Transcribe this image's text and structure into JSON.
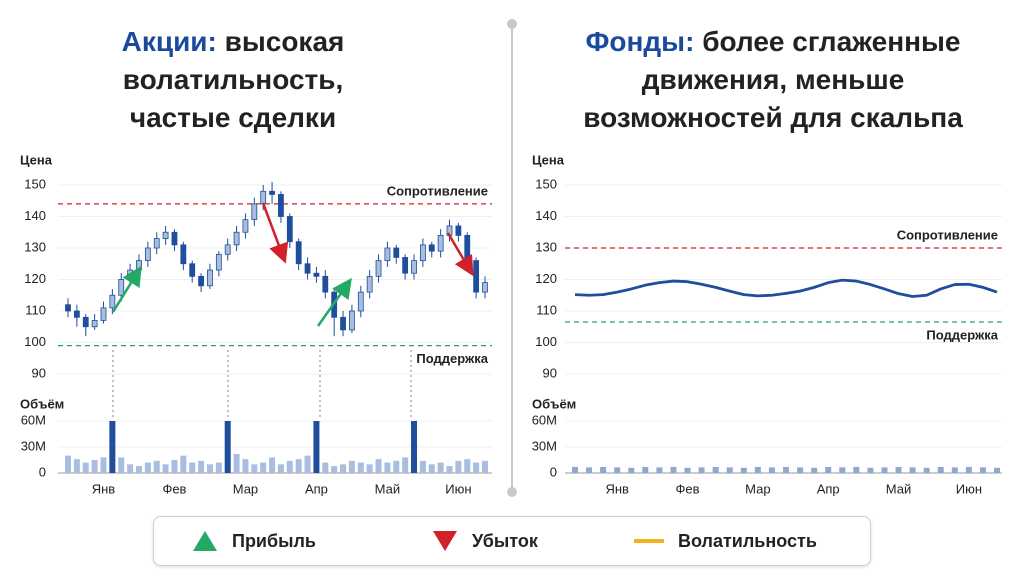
{
  "chart_data": [
    {
      "type": "candlestick",
      "title_highlight": "Акции:",
      "title": "высокая волатильность, частые сделки",
      "title_color": "#1a4a9c",
      "y_label": "Цена",
      "ylim": [
        90,
        150
      ],
      "yticks": [
        90,
        100,
        110,
        120,
        130,
        140,
        150
      ],
      "grid": true,
      "categories": [
        null,
        null,
        null,
        null,
        "Янв",
        null,
        null,
        null,
        null,
        null,
        null,
        null,
        "Фев",
        null,
        null,
        null,
        null,
        null,
        null,
        null,
        "Мар",
        null,
        null,
        null,
        null,
        null,
        null,
        null,
        "Апр",
        null,
        null,
        null,
        null,
        null,
        null,
        null,
        "Май",
        null,
        null,
        null,
        null,
        null,
        null,
        null,
        "Июн",
        null,
        null,
        null
      ],
      "open": [
        112,
        110,
        108,
        105,
        107,
        111,
        115,
        120,
        123,
        126,
        130,
        133,
        135,
        131,
        125,
        121,
        118,
        123,
        128,
        131,
        135,
        139,
        144,
        148,
        147,
        140,
        132,
        125,
        122,
        121,
        116,
        108,
        104,
        110,
        116,
        121,
        126,
        130,
        127,
        122,
        126,
        131,
        129,
        134,
        137,
        134,
        126,
        116
      ],
      "high": [
        114,
        112,
        109,
        109,
        113,
        117,
        122,
        125,
        128,
        132,
        135,
        137,
        136,
        132,
        126,
        122,
        125,
        129,
        133,
        137,
        141,
        146,
        150,
        151,
        148,
        141,
        133,
        127,
        124,
        123,
        117,
        110,
        112,
        118,
        123,
        128,
        132,
        131,
        128,
        128,
        133,
        132,
        136,
        139,
        138,
        135,
        127,
        121
      ],
      "low": [
        108,
        105,
        102,
        104,
        106,
        109,
        113,
        118,
        121,
        124,
        128,
        131,
        129,
        123,
        119,
        116,
        117,
        121,
        126,
        129,
        133,
        137,
        142,
        144,
        138,
        130,
        123,
        120,
        119,
        114,
        102,
        102,
        103,
        108,
        114,
        119,
        124,
        125,
        120,
        120,
        124,
        127,
        127,
        132,
        132,
        124,
        114,
        114
      ],
      "close": [
        110,
        108,
        105,
        107,
        111,
        115,
        120,
        123,
        126,
        130,
        133,
        135,
        131,
        125,
        121,
        118,
        123,
        128,
        131,
        135,
        139,
        144,
        148,
        147,
        140,
        132,
        125,
        122,
        121,
        116,
        108,
        104,
        110,
        116,
        121,
        126,
        130,
        127,
        122,
        126,
        131,
        129,
        134,
        137,
        134,
        126,
        116,
        119
      ],
      "up_color": "#a9bde0",
      "down_color": "#1f4e9c",
      "resistance": {
        "label": "Сопротивление",
        "value": 144,
        "color": "#d0202a"
      },
      "support": {
        "label": "Поддержка",
        "value": 99,
        "color": "#2aa36b"
      },
      "volume": {
        "label": "Объём",
        "ylim": [
          0,
          60
        ],
        "yticks": [
          0,
          {
            "value": 30,
            "label": "30M"
          },
          {
            "value": 60,
            "label": "60M"
          }
        ],
        "values": [
          20,
          16,
          12,
          15,
          18,
          60,
          18,
          10,
          8,
          12,
          14,
          10,
          15,
          20,
          12,
          14,
          10,
          12,
          60,
          22,
          16,
          10,
          12,
          18,
          10,
          14,
          16,
          20,
          60,
          12,
          8,
          10,
          14,
          12,
          10,
          16,
          12,
          14,
          18,
          60,
          14,
          10,
          12,
          8,
          14,
          16,
          12,
          14
        ],
        "colors": [
          "#a9bde0",
          "#a9bde0",
          "#a9bde0",
          "#a9bde0",
          "#a9bde0",
          "#1f4e9c",
          "#a9bde0",
          "#a9bde0",
          "#a9bde0",
          "#a9bde0",
          "#a9bde0",
          "#a9bde0",
          "#a9bde0",
          "#a9bde0",
          "#a9bde0",
          "#a9bde0",
          "#a9bde0",
          "#a9bde0",
          "#1f4e9c",
          "#a9bde0",
          "#a9bde0",
          "#a9bde0",
          "#a9bde0",
          "#a9bde0",
          "#a9bde0",
          "#a9bde0",
          "#a9bde0",
          "#a9bde0",
          "#1f4e9c",
          "#a9bde0",
          "#a9bde0",
          "#a9bde0",
          "#a9bde0",
          "#a9bde0",
          "#a9bde0",
          "#a9bde0",
          "#a9bde0",
          "#a9bde0",
          "#a9bde0",
          "#1f4e9c",
          "#a9bde0",
          "#a9bde0",
          "#a9bde0",
          "#a9bde0",
          "#a9bde0",
          "#a9bde0",
          "#a9bde0",
          "#a9bde0"
        ]
      }
    },
    {
      "type": "line",
      "title_highlight": "Фонды:",
      "title": "более сглаженные движения, меньше возможностей для скальпа",
      "title_color": "#1a4a9c",
      "y_label": "Цена",
      "ylim": [
        90,
        150
      ],
      "yticks": [
        90,
        100,
        110,
        120,
        130,
        140,
        150
      ],
      "grid": true,
      "categories": [
        null,
        null,
        null,
        "Янв",
        null,
        null,
        null,
        null,
        "Фев",
        null,
        null,
        null,
        null,
        "Мар",
        null,
        null,
        null,
        null,
        "Апр",
        null,
        null,
        null,
        null,
        "Май",
        null,
        null,
        null,
        null,
        "Июн",
        null,
        null
      ],
      "values": [
        115.2,
        115,
        115.2,
        116,
        117,
        118.2,
        119,
        119.5,
        119.3,
        118.5,
        117.5,
        116.3,
        115.2,
        114.8,
        115,
        115.6,
        116.3,
        117.5,
        119,
        119.8,
        119.5,
        118.4,
        117,
        115.5,
        114.6,
        115,
        117,
        118.4,
        118.5,
        117.5,
        116
      ],
      "color": "#1f4e9c",
      "resistance": {
        "label": "Сопротивление",
        "value": 130,
        "color": "#d0202a"
      },
      "support": {
        "label": "Поддержка",
        "value": 106.5,
        "color": "#2aa36b"
      },
      "volume": {
        "label": "Объём",
        "ylim": [
          0,
          60
        ],
        "yticks": [
          0,
          {
            "value": 30,
            "label": "30M"
          },
          {
            "value": 60,
            "label": "60M"
          }
        ],
        "values": [
          7,
          6.5,
          7,
          6.5,
          6,
          7,
          6.5,
          7,
          6,
          6.5,
          7,
          6.5,
          6,
          7,
          6.5,
          7,
          6.5,
          6,
          7,
          6.5,
          7,
          6,
          6.5,
          7,
          6.5,
          6,
          7,
          6.5,
          7,
          6.5,
          6
        ],
        "color": "#8fa8d0"
      }
    }
  ],
  "legend": [
    {
      "name": "Прибыль",
      "color": "#23a866",
      "marker": "triangle-up"
    },
    {
      "name": "Убыток",
      "color": "#d0202a",
      "marker": "triangle-down"
    },
    {
      "name": "Волатильность",
      "color": "#f5b01e",
      "marker": "line"
    }
  ]
}
